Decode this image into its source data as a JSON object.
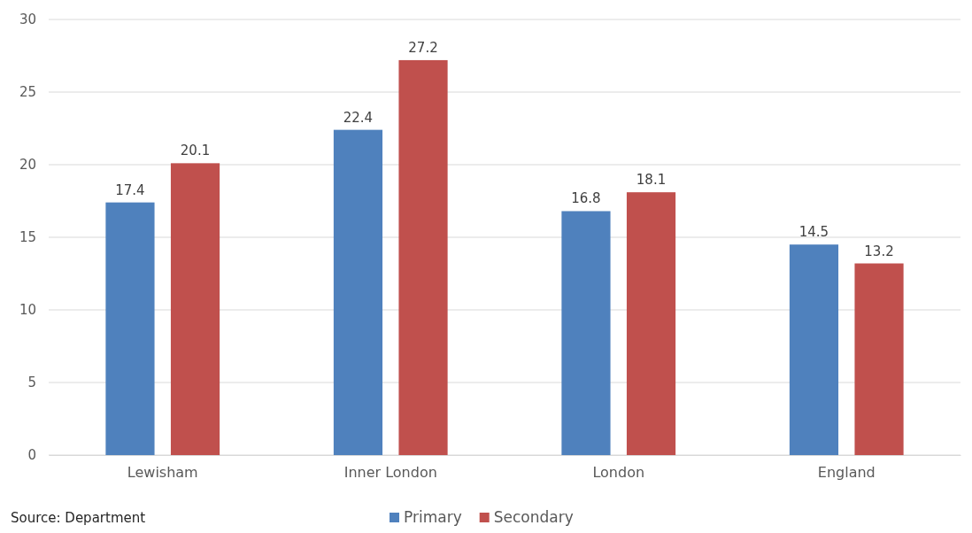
{
  "chart_data": {
    "type": "bar",
    "categories": [
      "Lewisham",
      "Inner London",
      "London",
      "England"
    ],
    "series": [
      {
        "name": "Primary",
        "color": "#4f81bd",
        "values": [
          17.4,
          22.4,
          16.8,
          14.5
        ]
      },
      {
        "name": "Secondary",
        "color": "#c0504d",
        "values": [
          20.1,
          27.2,
          18.1,
          13.2
        ]
      }
    ],
    "ylim": [
      0,
      30
    ],
    "yticks": [
      0,
      5,
      10,
      15,
      20,
      25,
      30
    ],
    "grid": "y",
    "data_labels": true,
    "legend": "bottom",
    "annotations": [
      "Source: Department"
    ]
  }
}
